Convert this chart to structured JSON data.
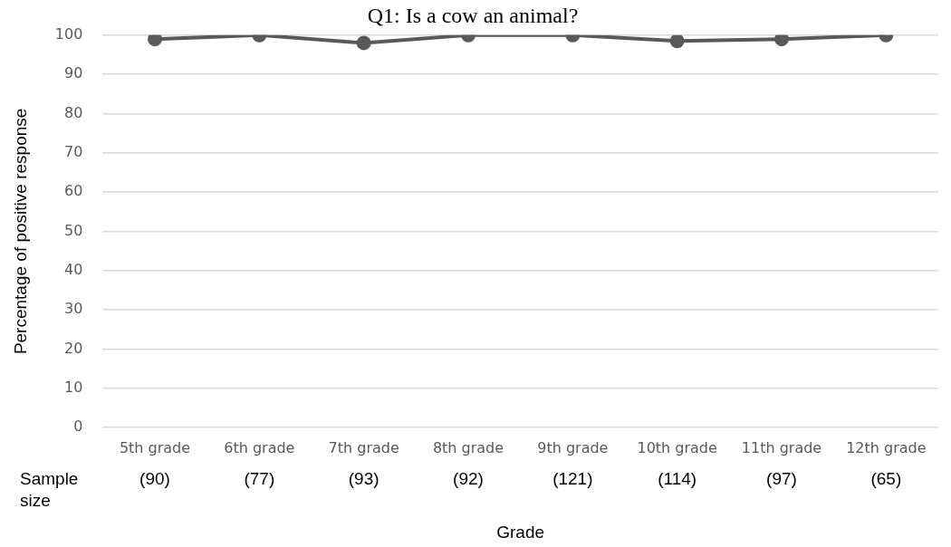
{
  "chart_data": {
    "type": "line",
    "title": "Q1: Is a cow an animal?",
    "xlabel": "Grade",
    "ylabel": "Percentage of positive response",
    "categories": [
      "5th grade",
      "6th grade",
      "7th grade",
      "8th grade",
      "9th grade",
      "10th grade",
      "11th grade",
      "12th grade"
    ],
    "series": [
      {
        "color": "#595959",
        "values": [
          99,
          100,
          98,
          100,
          100,
          98.5,
          99,
          100
        ]
      }
    ],
    "ylim": [
      0,
      100
    ],
    "yticks": [
      0,
      10,
      20,
      30,
      40,
      50,
      60,
      70,
      80,
      90,
      100
    ],
    "grid": "y",
    "legend": false,
    "marker": "circle",
    "line_style": "solid",
    "annotations": [
      "Sample size",
      "(90)",
      "(77)",
      "(93)",
      "(92)",
      "(121)",
      "(114)",
      "(97)",
      "(65)"
    ]
  }
}
